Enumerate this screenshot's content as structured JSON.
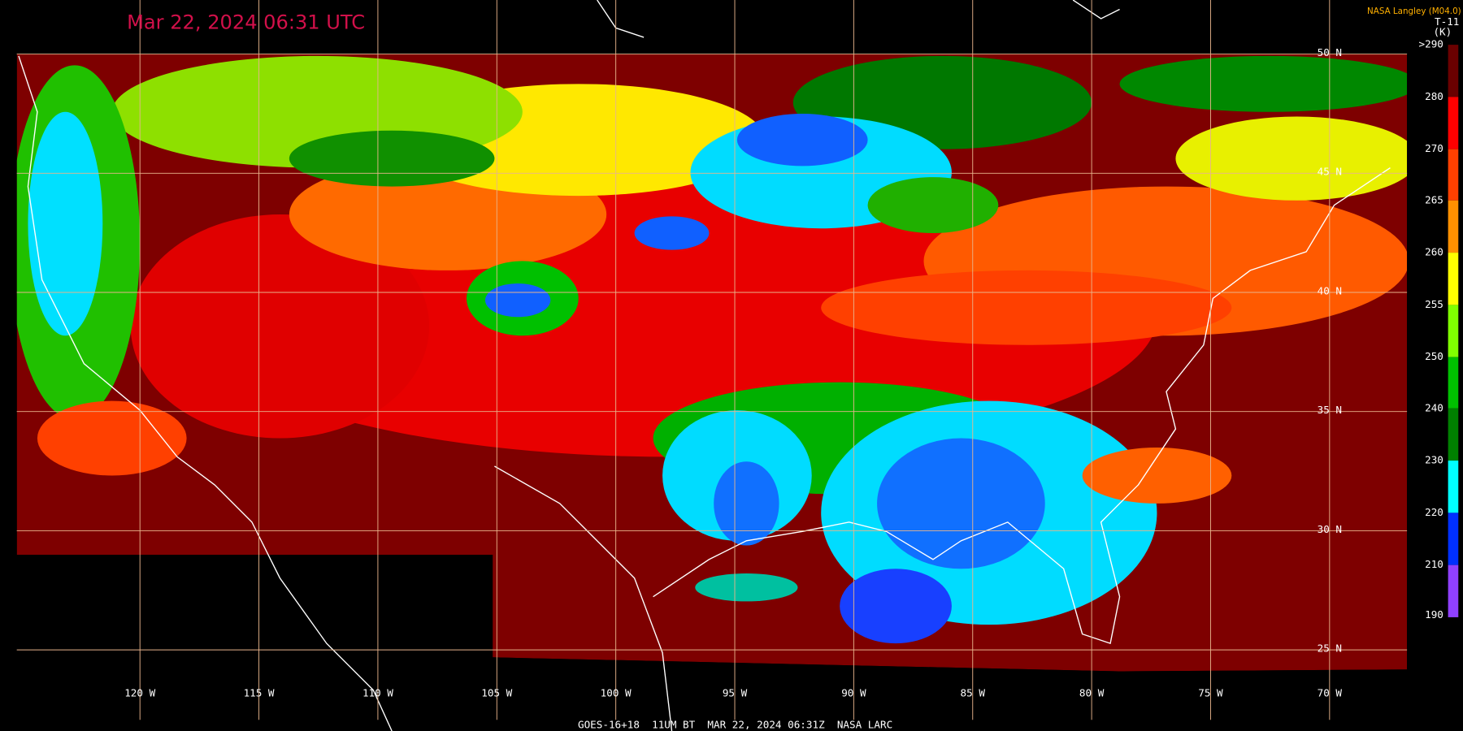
{
  "header": {
    "title": "Mar 22, 2024 06:31 UTC",
    "credit": "NASA Langley (M04.0)"
  },
  "colorbar": {
    "product": "T-11",
    "unit": "(K)",
    "labels": [
      ">290",
      "280",
      "270",
      "265",
      "260",
      "255",
      "250",
      "240",
      "230",
      "220",
      "210",
      "190"
    ]
  },
  "map": {
    "latitude_labels": [
      "50 N",
      "45 N",
      "40 N",
      "35 N",
      "30 N",
      "25 N"
    ],
    "longitude_labels": [
      "120 W",
      "115 W",
      "110 W",
      "105 W",
      "100 W",
      "95 W",
      "90 W",
      "85 W",
      "80 W",
      "75 W",
      "70 W"
    ]
  },
  "footer": {
    "caption": "GOES-16+18  11UM BT  MAR 22, 2024 06:31Z  NASA LARC"
  }
}
